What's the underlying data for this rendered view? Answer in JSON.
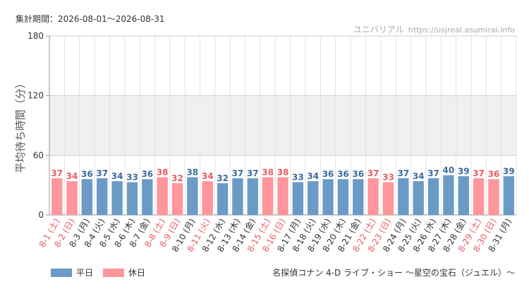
{
  "header": {
    "period": "集計期間：2026-08-01～2026-08-31",
    "source_name": "ユニバリアル",
    "source_url": "https://usjreal.asumirai.info"
  },
  "legend": {
    "weekday_label": "平日",
    "holiday_label": "休日"
  },
  "attraction_name": "名探偵コナン 4-D ライブ・ショー 〜星空の宝石（ジュエル）〜",
  "colors": {
    "weekday": "#6b9ac7",
    "holiday": "#ff969b",
    "weekday_text": "#3c6b9b",
    "holiday_text": "#e85c63",
    "band": "#f0f0f0",
    "grid": "#e3e3e3"
  },
  "chart_data": {
    "type": "bar",
    "ylabel": "平均待ち時間（分）",
    "ylim": [
      0,
      180
    ],
    "yticks": [
      0,
      60,
      120,
      180
    ],
    "shaded_band": [
      60,
      120
    ],
    "categories": [
      "8-1 (土)",
      "8-2 (日)",
      "8-3 (月)",
      "8-4 (火)",
      "8-5 (水)",
      "8-6 (木)",
      "8-7 (金)",
      "8-8 (土)",
      "8-9 (日)",
      "8-10 (月)",
      "8-11 (火)",
      "8-12 (水)",
      "8-13 (木)",
      "8-14 (金)",
      "8-15 (土)",
      "8-16 (日)",
      "8-17 (月)",
      "8-18 (火)",
      "8-19 (水)",
      "8-20 (木)",
      "8-21 (金)",
      "8-22 (土)",
      "8-23 (日)",
      "8-24 (月)",
      "8-25 (火)",
      "8-26 (水)",
      "8-27 (木)",
      "8-28 (金)",
      "8-29 (土)",
      "8-30 (日)",
      "8-31 (月)"
    ],
    "values": [
      37,
      34,
      36,
      37,
      34,
      33,
      36,
      38,
      32,
      38,
      34,
      32,
      37,
      37,
      38,
      38,
      33,
      34,
      36,
      36,
      36,
      37,
      33,
      37,
      34,
      37,
      40,
      39,
      37,
      36,
      39
    ],
    "day_type": [
      "holiday",
      "holiday",
      "weekday",
      "weekday",
      "weekday",
      "weekday",
      "weekday",
      "holiday",
      "holiday",
      "weekday",
      "holiday",
      "weekday",
      "weekday",
      "weekday",
      "holiday",
      "holiday",
      "weekday",
      "weekday",
      "weekday",
      "weekday",
      "weekday",
      "holiday",
      "holiday",
      "weekday",
      "weekday",
      "weekday",
      "weekday",
      "weekday",
      "holiday",
      "holiday",
      "weekday"
    ],
    "series": [
      {
        "name": "平日",
        "color": "#6b9ac7"
      },
      {
        "name": "休日",
        "color": "#ff969b"
      }
    ],
    "legend_position": "bottom-left",
    "grid": true
  }
}
